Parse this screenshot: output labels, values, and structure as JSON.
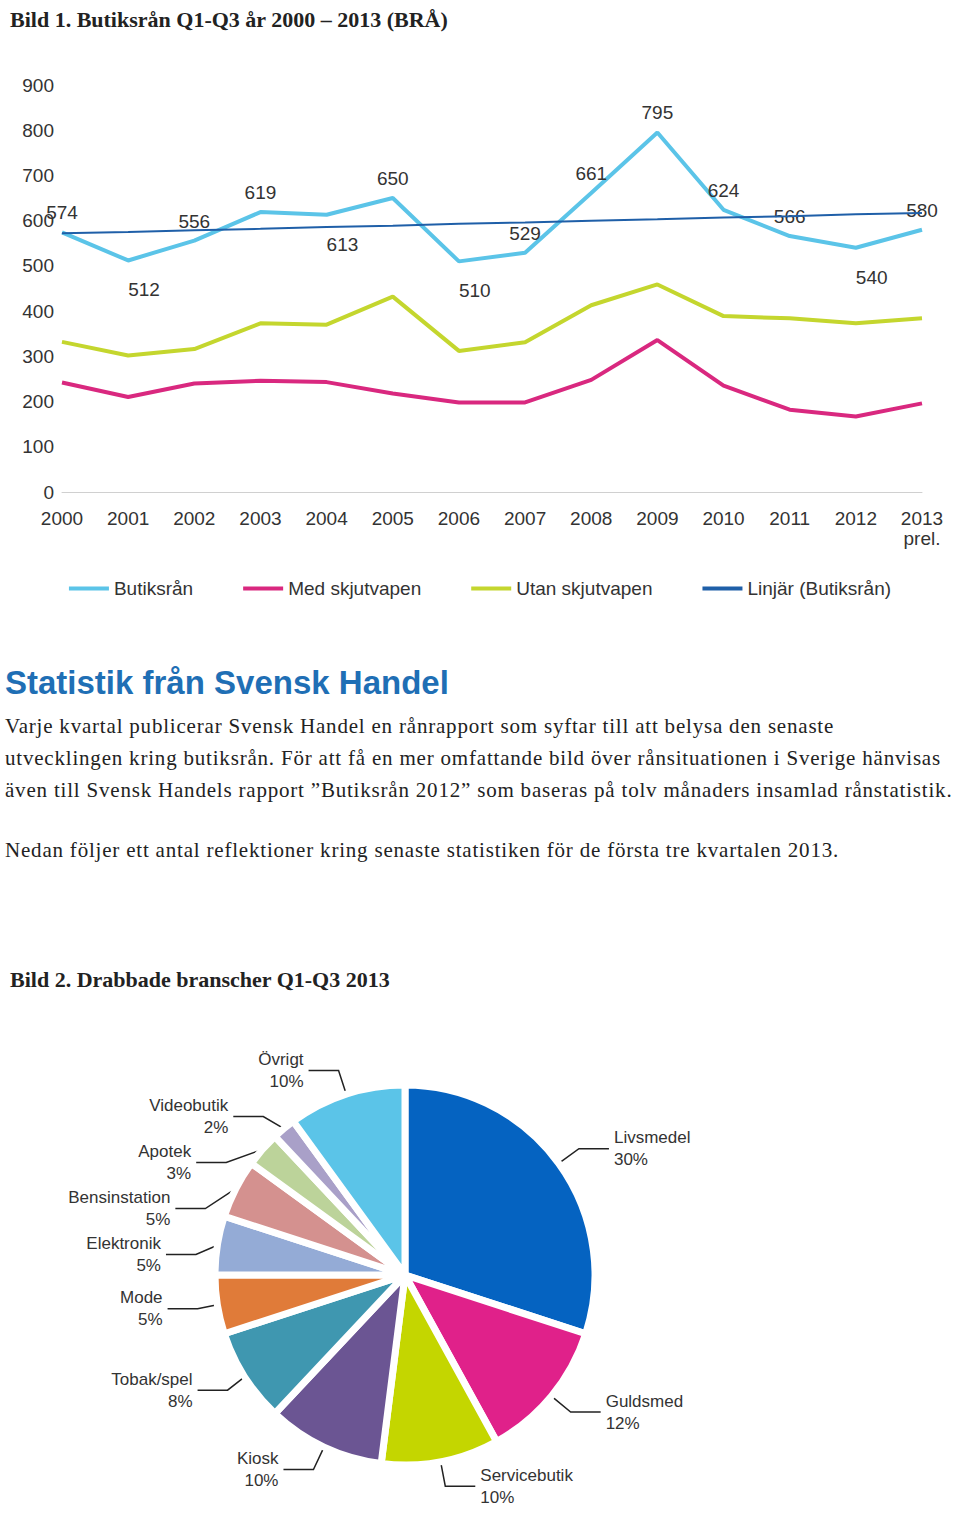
{
  "page": {
    "heading": "Statistik från Svensk Handel",
    "paragraphs": [
      "Varje kvartal publicerar Svensk Handel en rånrapport som syftar till att belysa den senaste utvecklingen kring butiksrån. För att få en mer omfattande bild över rånsituationen i Sverige hänvisas även till Svensk Handels rapport ”Butiksrån 2012” som baseras på tolv månaders insamlad rånstatistik.",
      "Nedan följer ett antal reflektioner kring senaste statistiken för de första tre kvartalen 2013."
    ]
  },
  "chart_data": [
    {
      "type": "line",
      "title": "Bild 1. Butiksrån Q1-Q3 år 2000 – 2013 (BRÅ)",
      "categories": [
        "2000",
        "2001",
        "2002",
        "2003",
        "2004",
        "2005",
        "2006",
        "2007",
        "2008",
        "2009",
        "2010",
        "2011",
        "2012",
        "2013\nprel."
      ],
      "series": [
        {
          "name": "Butiksrån",
          "color": "#5bc4e8",
          "data_labels": true,
          "values": [
            574,
            512,
            556,
            619,
            613,
            650,
            510,
            529,
            661,
            795,
            624,
            566,
            540,
            580
          ]
        },
        {
          "name": "Med skjutvapen",
          "color": "#d9287f",
          "values": [
            242,
            210,
            240,
            246,
            243,
            218,
            198,
            198,
            248,
            336,
            235,
            182,
            167,
            196
          ]
        },
        {
          "name": "Utan skjutvapen",
          "color": "#c4d62e",
          "values": [
            332,
            302,
            316,
            373,
            370,
            432,
            312,
            331,
            413,
            459,
            389,
            384,
            373,
            384
          ]
        },
        {
          "name": "Linjär (Butiksrån)",
          "color": "#1f5fa8",
          "values": [
            572,
            575,
            579,
            582,
            586,
            589,
            593,
            596,
            600,
            603,
            607,
            610,
            614,
            617
          ]
        }
      ],
      "ylim": [
        0,
        900
      ],
      "yticks": [
        0,
        100,
        200,
        300,
        400,
        500,
        600,
        700,
        800,
        900
      ],
      "grid": false,
      "legend": "bottom"
    },
    {
      "type": "pie",
      "title": "Bild 2. Drabbade branscher Q1-Q3 2013",
      "categories": [
        "Livsmedel",
        "Guldsmed",
        "Servicebutik",
        "Kiosk",
        "Tobak/spel",
        "Mode",
        "Elektronik",
        "Bensinstation",
        "Apotek",
        "Videobutik",
        "Övrigt"
      ],
      "values": [
        30,
        12,
        10,
        10,
        8,
        5,
        5,
        5,
        3,
        2,
        10
      ],
      "value_labels": [
        "30%",
        "12%",
        "10%",
        "10%",
        "8%",
        "5%",
        "5%",
        "5%",
        "3%",
        "2%",
        "10%"
      ],
      "colors": [
        "#0563c1",
        "#e0218a",
        "#c4d600",
        "#6b5593",
        "#3f97b0",
        "#e07b39",
        "#94abd6",
        "#d4918f",
        "#bcd39a",
        "#a9a0c8",
        "#5bc4e8"
      ],
      "data_labels": true
    }
  ]
}
